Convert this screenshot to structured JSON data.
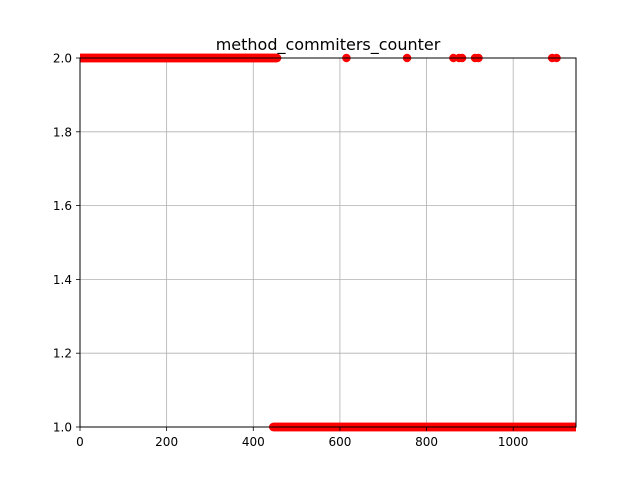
{
  "chart_data": {
    "type": "scatter",
    "title": "method_commiters_counter",
    "xlabel": "",
    "ylabel": "",
    "xlim": [
      0,
      1145
    ],
    "ylim": [
      1.0,
      2.0
    ],
    "grid": true,
    "legend": "none",
    "x_ticks": [
      {
        "value": 0,
        "label": "0"
      },
      {
        "value": 200,
        "label": "200"
      },
      {
        "value": 400,
        "label": "400"
      },
      {
        "value": 600,
        "label": "600"
      },
      {
        "value": 800,
        "label": "800"
      },
      {
        "value": 1000,
        "label": "1000"
      }
    ],
    "y_ticks": [
      {
        "value": 1.0,
        "label": "1.0"
      },
      {
        "value": 1.2,
        "label": "1.2"
      },
      {
        "value": 1.4,
        "label": "1.4"
      },
      {
        "value": 1.6,
        "label": "1.6"
      },
      {
        "value": 1.8,
        "label": "1.8"
      },
      {
        "value": 2.0,
        "label": "2.0"
      }
    ],
    "series": [
      {
        "color": "#ff0000",
        "marker": "circle",
        "runs": [
          {
            "x_start": 0,
            "x_end": 455,
            "step": 1,
            "y": 2
          },
          {
            "x_start": 446,
            "x_end": 1145,
            "step": 1,
            "y": 1
          }
        ],
        "points": [
          {
            "x": 615,
            "y": 2
          },
          {
            "x": 755,
            "y": 2
          },
          {
            "x": 862,
            "y": 2
          },
          {
            "x": 875,
            "y": 2
          },
          {
            "x": 882,
            "y": 2
          },
          {
            "x": 912,
            "y": 2
          },
          {
            "x": 920,
            "y": 2
          },
          {
            "x": 1090,
            "y": 2
          },
          {
            "x": 1100,
            "y": 2
          }
        ]
      }
    ]
  },
  "colors": {
    "marker": "#ff0000",
    "grid": "#b0b0b0",
    "axis": "#000000",
    "background": "#ffffff"
  }
}
